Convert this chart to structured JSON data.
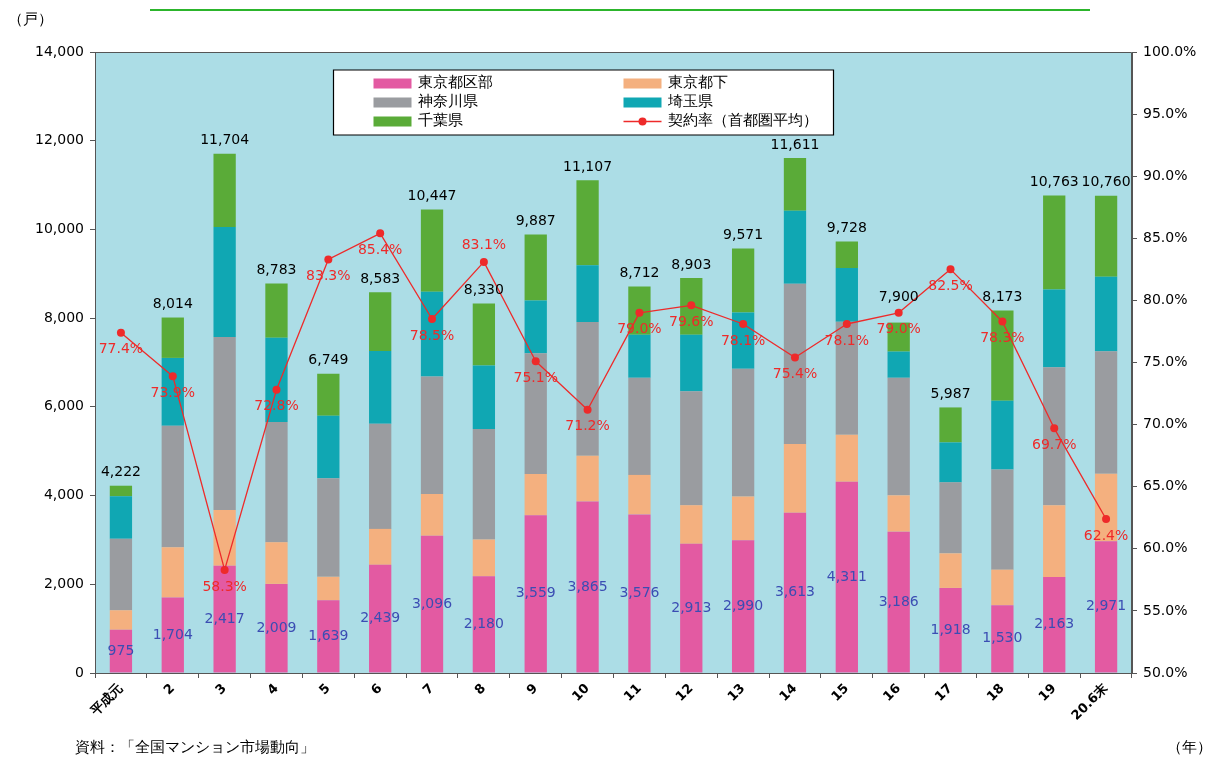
{
  "chart_data": {
    "type": "bar",
    "stacked": true,
    "ylabel": "（戸）",
    "xlabel": "（年）",
    "annotations": [
      "資料：「全国マンション市場動向」"
    ],
    "categories": [
      "平成元",
      "2",
      "3",
      "4",
      "5",
      "6",
      "7",
      "8",
      "9",
      "10",
      "11",
      "12",
      "13",
      "14",
      "15",
      "16",
      "17",
      "18",
      "19",
      "20.6末"
    ],
    "series": [
      {
        "name": "東京都区部",
        "color": "#e35aa2",
        "values": [
          975,
          1704,
          2417,
          2009,
          1639,
          2439,
          3096,
          2180,
          3559,
          3865,
          3576,
          2913,
          2990,
          3613,
          4311,
          3186,
          1918,
          1530,
          2163,
          2971
        ],
        "value_labels": [
          "975",
          "1,704",
          "2,417",
          "2,009",
          "1,639",
          "2,439",
          "3,096",
          "2,180",
          "3,559",
          "3,865",
          "3,576",
          "2,913",
          "2,990",
          "3,613",
          "4,311",
          "3,186",
          "1,918",
          "1,530",
          "2,163",
          "2,971"
        ]
      },
      {
        "name": "東京都下",
        "color": "#f4b07f",
        "values": [
          440,
          1130,
          1260,
          940,
          530,
          810,
          940,
          830,
          930,
          1030,
          890,
          870,
          990,
          1550,
          1060,
          820,
          780,
          800,
          1620,
          1520
        ]
      },
      {
        "name": "神奈川県",
        "color": "#9a9ca0",
        "values": [
          1610,
          2740,
          3900,
          2710,
          2220,
          2370,
          2650,
          2490,
          2720,
          3020,
          2190,
          2570,
          2880,
          3610,
          2550,
          2650,
          1600,
          2260,
          3110,
          2760
        ]
      },
      {
        "name": "埼玉県",
        "color": "#10a7b3",
        "values": [
          960,
          1530,
          2480,
          1900,
          1410,
          1640,
          1910,
          1430,
          1190,
          1280,
          970,
          1270,
          1270,
          1650,
          1210,
          590,
          900,
          1550,
          1750,
          1680
        ]
      },
      {
        "name": "千葉県",
        "color": "#5aab38",
        "values": [
          237,
          910,
          1647,
          1224,
          950,
          1324,
          1851,
          1400,
          1488,
          1912,
          1086,
          1280,
          1441,
          1188,
          597,
          654,
          789,
          2033,
          2120,
          1829
        ]
      },
      {
        "name": "契約率（首都圏平均）",
        "type": "line",
        "axis": "y2",
        "color": "#ee2a2a",
        "values": [
          77.4,
          73.9,
          58.3,
          72.8,
          83.3,
          85.4,
          78.5,
          83.1,
          75.1,
          71.2,
          79.0,
          79.6,
          78.1,
          75.4,
          78.1,
          79.0,
          82.5,
          78.3,
          69.7,
          62.4
        ],
        "value_labels": [
          "77.4%",
          "73.9%",
          "58.3%",
          "72.8%",
          "83.3%",
          "85.4%",
          "78.5%",
          "83.1%",
          "75.1%",
          "71.2%",
          "79.0%",
          "79.6%",
          "78.1%",
          "75.4%",
          "78.1%",
          "79.0%",
          "82.5%",
          "78.3%",
          "69.7%",
          "62.4%"
        ]
      }
    ],
    "totals": [
      "4,222",
      "8,014",
      "11,704",
      "8,783",
      "6,749",
      "8,583",
      "10,447",
      "8,330",
      "9,887",
      "11,107",
      "8,712",
      "8,903",
      "9,571",
      "11,611",
      "9,728",
      "7,900",
      "5,987",
      "8,173",
      "10,763",
      "10,760"
    ],
    "ylim": [
      0,
      14000
    ],
    "yticks": [
      0,
      {
        "value": 2000,
        "label": "2,000"
      },
      {
        "value": 4000,
        "label": "4,000"
      },
      {
        "value": 6000,
        "label": "6,000"
      },
      {
        "value": 8000,
        "label": "8,000"
      },
      {
        "value": 10000,
        "label": "10,000"
      },
      {
        "value": 12000,
        "label": "12,000"
      },
      {
        "value": 14000,
        "label": "14,000"
      }
    ],
    "y2lim": [
      50,
      100
    ],
    "y2ticks": [
      {
        "value": 50,
        "label": "50.0%"
      },
      {
        "value": 55,
        "label": "55.0%"
      },
      {
        "value": 60,
        "label": "60.0%"
      },
      {
        "value": 65,
        "label": "65.0%"
      },
      {
        "value": 70,
        "label": "70.0%"
      },
      {
        "value": 75,
        "label": "75.0%"
      },
      {
        "value": 80,
        "label": "80.0%"
      },
      {
        "value": 85,
        "label": "85.0%"
      },
      {
        "value": 90,
        "label": "90.0%"
      },
      {
        "value": 95,
        "label": "95.0%"
      },
      {
        "value": 100,
        "label": "100.0%"
      }
    ],
    "grid": false,
    "legend": "top",
    "marker": "circle"
  }
}
